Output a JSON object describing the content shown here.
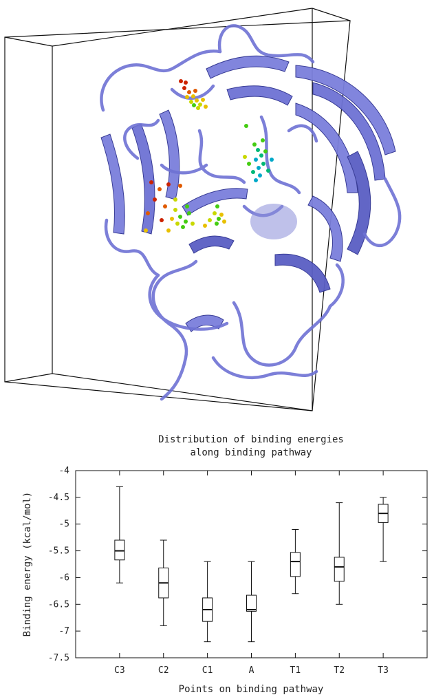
{
  "chart_data": {
    "type": "box",
    "title_lines": [
      "Distribution of binding energies",
      "along binding pathway"
    ],
    "xlabel": "Points on binding pathway",
    "ylabel": "Binding energy (kcal/mol)",
    "ylim": [
      -7.5,
      -4
    ],
    "yticks": [
      -4,
      -4.5,
      -5,
      -5.5,
      -6,
      -6.5,
      -7,
      -7.5
    ],
    "ytick_labels": [
      "-4",
      "-4.5",
      "-5",
      "-5.5",
      "-6",
      "-6.5",
      "-7",
      "-7.5"
    ],
    "categories": [
      "C3",
      "C2",
      "C1",
      "A",
      "T1",
      "T2",
      "T3"
    ],
    "boxes": [
      {
        "min": -6.1,
        "q1": -5.67,
        "median": -5.5,
        "q3": -5.3,
        "max": -4.3
      },
      {
        "min": -6.9,
        "q1": -6.38,
        "median": -6.1,
        "q3": -5.82,
        "max": -5.3
      },
      {
        "min": -7.2,
        "q1": -6.82,
        "median": -6.6,
        "q3": -6.38,
        "max": -5.7
      },
      {
        "min": -7.2,
        "q1": -6.63,
        "median": -6.6,
        "q3": -6.33,
        "max": -5.7
      },
      {
        "min": -6.3,
        "q1": -5.98,
        "median": -5.7,
        "q3": -5.53,
        "max": -5.1
      },
      {
        "min": -6.5,
        "q1": -6.07,
        "median": -5.8,
        "q3": -5.62,
        "max": -4.6
      },
      {
        "min": -5.7,
        "q1": -4.97,
        "median": -4.8,
        "q3": -4.63,
        "max": -4.5
      }
    ],
    "grid": false
  },
  "molecule_image": {
    "structure_color": "#7b7fdc",
    "structure_dark": "#2e3290",
    "cluster_colors": [
      "#cc2200",
      "#e05a00",
      "#e8c000",
      "#c8d800",
      "#44cc11",
      "#00b877",
      "#00a8c8"
    ]
  }
}
